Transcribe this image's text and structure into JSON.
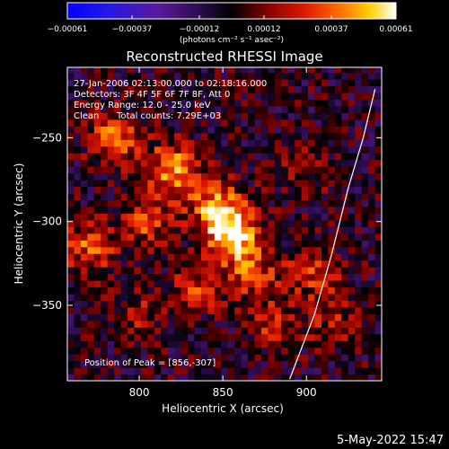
{
  "chart_data": {
    "type": "heatmap",
    "title": "Reconstructed RHESSI Image",
    "xlabel": "Heliocentric X (arcsec)",
    "ylabel": "Heliocentric Y (arcsec)",
    "xlim": [
      757,
      945
    ],
    "ylim": [
      -395,
      -208
    ],
    "x_ticks": [
      {
        "value": 800,
        "label": "800"
      },
      {
        "value": 850,
        "label": "850"
      },
      {
        "value": 900,
        "label": "900"
      }
    ],
    "y_ticks": [
      {
        "value": -250,
        "label": "−250"
      },
      {
        "value": -300,
        "label": "−300"
      },
      {
        "value": -350,
        "label": "−350"
      }
    ],
    "colorbar": {
      "min": -0.00061,
      "max": 0.00061,
      "ticks": [
        {
          "value": -0.00061,
          "label": "−0.00061"
        },
        {
          "value": -0.00037,
          "label": "−0.00037"
        },
        {
          "value": -0.00012,
          "label": "−0.00012"
        },
        {
          "value": 0.00012,
          "label": "0.00012"
        },
        {
          "value": 0.00037,
          "label": "0.00037"
        },
        {
          "value": 0.00061,
          "label": "0.00061"
        }
      ],
      "unit_label": "(photons cm⁻² s⁻¹ asec⁻²)",
      "colormap": "blue-purple-black-red-orange-yellow-white"
    },
    "sources": [
      {
        "x": 856,
        "y": -307,
        "peak": 0.00061
      },
      {
        "x": 820,
        "y": -268,
        "peak": 0.00044
      },
      {
        "x": 785,
        "y": -250,
        "peak": 0.00036
      },
      {
        "x": 845,
        "y": -290,
        "peak": 0.0004
      },
      {
        "x": 805,
        "y": -300,
        "peak": 0.0003
      },
      {
        "x": 770,
        "y": -315,
        "peak": 0.00034
      },
      {
        "x": 868,
        "y": -330,
        "peak": 0.0003
      },
      {
        "x": 835,
        "y": -340,
        "peak": 0.00026
      },
      {
        "x": 905,
        "y": -330,
        "peak": 0.00028
      },
      {
        "x": 880,
        "y": -360,
        "peak": 0.00024
      },
      {
        "x": 800,
        "y": -355,
        "peak": 0.00018
      },
      {
        "x": 895,
        "y": -270,
        "peak": 0.00016
      },
      {
        "x": 915,
        "y": -360,
        "peak": 0.00018
      }
    ],
    "limb_curve": [
      {
        "x": 941,
        "y": -221
      },
      {
        "x": 934,
        "y": -250
      },
      {
        "x": 925,
        "y": -280
      },
      {
        "x": 915,
        "y": -320
      },
      {
        "x": 905,
        "y": -355
      },
      {
        "x": 890,
        "y": -394
      }
    ],
    "annotations": {
      "time_range": "27-Jan-2006 02:13:00.000 to 02:18:16.000",
      "detectors": "Detectors: 3F 4F 5F 6F 7F 8F, Att 0",
      "energy": "Energy Range: 12.0 - 25.0 keV",
      "algorithm": "Clean",
      "counts": "Total counts: 7.29E+03",
      "peak": "Position of Peak = [856,-307]"
    },
    "grid": false
  },
  "timestamp": "5-May-2022 15:47"
}
